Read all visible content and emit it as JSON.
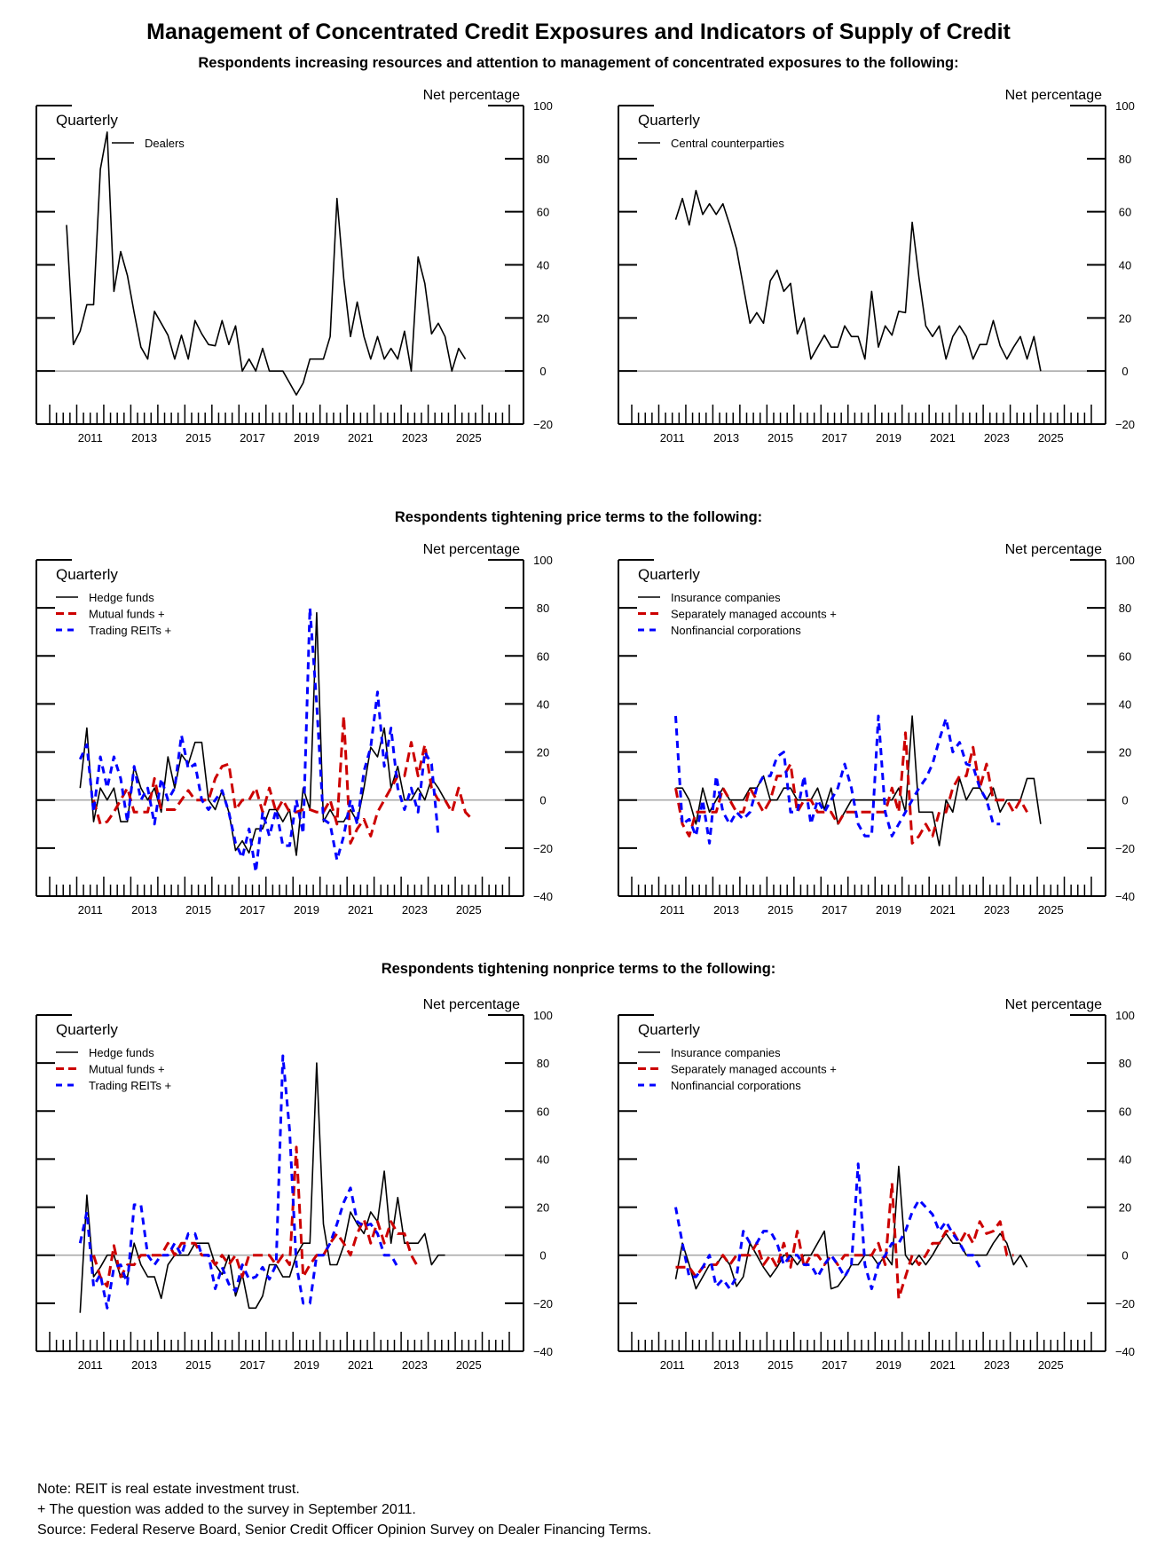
{
  "title": "Management of Concentrated Credit Exposures and Indicators of Supply of Credit",
  "sections": [
    "Respondents increasing resources and attention to management of concentrated exposures to the following:",
    "Respondents tightening price terms to the following:",
    "Respondents tightening nonprice terms to the following:"
  ],
  "notes": [
    "Note:  REIT is real estate investment trust.",
    "+ The question was added to the survey in September 2011.",
    "Source:  Federal Reserve Board, Senior Credit Officer Opinion Survey on Dealer Financing Terms."
  ],
  "chart_data": [
    {
      "id": "dealers",
      "type": "line",
      "frequency_label": "Quarterly",
      "ylabel": "Net percentage",
      "ylim": [
        -20,
        100
      ],
      "yticks": [
        -20,
        0,
        20,
        40,
        60,
        80,
        100
      ],
      "xlim": [
        2010,
        2027
      ],
      "xtick_labels": [
        "2011",
        "2013",
        "2015",
        "2017",
        "2019",
        "2021",
        "2023",
        "2025"
      ],
      "legend": "top-left",
      "zero_line": true,
      "series": [
        {
          "name": "Dealers",
          "color": "#000000",
          "style": "solid",
          "start": 2010.5,
          "values": [
            55,
            10,
            15,
            25,
            25,
            76,
            90,
            30,
            45,
            36,
            22,
            9,
            4.5,
            22.5,
            18,
            13.5,
            4.5,
            13.5,
            4.5,
            19,
            14,
            10,
            9.5,
            19,
            10,
            17,
            0,
            4.5,
            0,
            8.5,
            0,
            0,
            0,
            -4.5,
            -9,
            -4.5,
            4.5,
            4.5,
            4.5,
            13,
            65,
            35,
            13,
            26,
            13,
            4.5,
            13,
            4.5,
            8.5,
            4.5,
            15,
            0,
            43,
            33,
            14,
            18,
            13,
            0,
            8.5,
            4.5
          ]
        }
      ]
    },
    {
      "id": "ccp",
      "type": "line",
      "frequency_label": "Quarterly",
      "ylabel": "Net percentage",
      "ylim": [
        -20,
        100
      ],
      "yticks": [
        -20,
        0,
        20,
        40,
        60,
        80,
        100
      ],
      "xlim": [
        2010,
        2027
      ],
      "xtick_labels": [
        "2011",
        "2013",
        "2015",
        "2017",
        "2019",
        "2021",
        "2023",
        "2025"
      ],
      "legend": "top-left",
      "zero_line": true,
      "series": [
        {
          "name": "Central counterparties",
          "color": "#000000",
          "style": "solid",
          "start": 2011.5,
          "values": [
            57,
            65,
            55,
            68,
            59,
            63,
            59,
            63,
            55,
            46,
            32,
            18,
            22,
            18,
            34,
            38,
            30,
            33,
            14,
            20,
            4.5,
            9,
            13.5,
            9,
            9,
            17,
            13,
            13,
            4.5,
            30,
            9,
            17,
            13.5,
            22.5,
            22,
            56,
            35,
            17,
            13,
            17,
            4.5,
            13,
            17,
            13,
            4.5,
            10,
            10,
            19,
            9.5,
            4.5,
            9,
            13,
            4.5,
            13,
            0
          ]
        }
      ]
    },
    {
      "id": "price-left",
      "type": "line",
      "frequency_label": "Quarterly",
      "ylabel": "Net percentage",
      "ylim": [
        -40,
        100
      ],
      "yticks": [
        -40,
        -20,
        0,
        20,
        40,
        60,
        80,
        100
      ],
      "xlim": [
        2010.5,
        2027
      ],
      "xtick_labels": [
        "2011",
        "2013",
        "2015",
        "2017",
        "2019",
        "2021",
        "2023",
        "2025"
      ],
      "legend": "top-left",
      "zero_line": true,
      "series": [
        {
          "name": "Hedge funds",
          "color": "#000000",
          "style": "solid",
          "start": 2011,
          "values": [
            5,
            30,
            -9,
            5,
            0,
            5,
            -9,
            -9,
            14,
            5,
            0,
            5,
            -5,
            18,
            5,
            19,
            15,
            24,
            24,
            0,
            -4,
            4,
            -5,
            -21,
            -17,
            -22,
            -12,
            -12,
            -4,
            -4,
            -9,
            -4,
            -23,
            5,
            -4,
            78,
            -9,
            -4,
            -9,
            -9,
            -4,
            -9,
            5,
            22,
            18,
            30,
            5,
            14,
            0,
            0,
            5,
            0,
            9,
            5,
            0
          ]
        },
        {
          "name": "Mutual funds +",
          "color": "#cc0000",
          "style": "dash",
          "start": 2011.5,
          "values": [
            0,
            -10,
            -9,
            -5,
            0,
            5,
            -5,
            -5,
            -5,
            9,
            -4,
            -4,
            -4,
            0,
            4,
            0,
            0,
            0,
            9,
            14,
            15,
            -4,
            0,
            0,
            5,
            -5,
            5,
            -5,
            0,
            -5,
            -5,
            -4,
            -4,
            -5,
            -5,
            0,
            -10,
            35,
            -18,
            -12,
            -8,
            -15,
            -5,
            0,
            5,
            10,
            10,
            24,
            10,
            23,
            5,
            0,
            0,
            -5,
            5,
            -5,
            -8
          ]
        },
        {
          "name": "Trading REITs +",
          "color": "#0000ff",
          "style": "dash",
          "start": 2011,
          "values": [
            17,
            23,
            -5,
            18,
            5,
            18,
            9,
            -9,
            14,
            0,
            5,
            -10,
            9,
            0,
            5,
            27,
            13,
            15,
            0,
            -4,
            0,
            4,
            -5,
            -18,
            -24,
            -12,
            -30,
            -5,
            -15,
            -4,
            -19,
            -19,
            0,
            -14,
            80,
            40,
            -8,
            -10,
            -25,
            -15,
            0,
            -10,
            12,
            22,
            45,
            14,
            30,
            5,
            -4,
            5,
            -5,
            20,
            15,
            -15
          ]
        }
      ]
    },
    {
      "id": "price-right",
      "type": "line",
      "frequency_label": "Quarterly",
      "ylabel": "Net percentage",
      "ylim": [
        -40,
        100
      ],
      "yticks": [
        -40,
        -20,
        0,
        20,
        40,
        60,
        80,
        100
      ],
      "xlim": [
        2010.5,
        2027
      ],
      "xtick_labels": [
        "2011",
        "2013",
        "2015",
        "2017",
        "2019",
        "2021",
        "2023",
        "2025"
      ],
      "legend": "top-left",
      "zero_line": true,
      "series": [
        {
          "name": "Insurance companies",
          "color": "#000000",
          "style": "solid",
          "start": 2011.5,
          "values": [
            5,
            5,
            0,
            -10,
            5,
            -5,
            0,
            5,
            0,
            0,
            0,
            5,
            5,
            10,
            0,
            0,
            5,
            5,
            0,
            0,
            0,
            5,
            -4,
            5,
            -10,
            -5,
            0,
            0,
            0,
            0,
            0,
            0,
            0,
            5,
            -5,
            35,
            -5,
            -5,
            -5,
            -19,
            0,
            -5,
            9,
            0,
            5,
            5,
            0,
            5,
            -5,
            0,
            0,
            0,
            9,
            9,
            -10
          ]
        },
        {
          "name": "Separately managed accounts +",
          "color": "#cc0000",
          "style": "dash",
          "start": 2011.5,
          "values": [
            5,
            -10,
            -15,
            -5,
            -5,
            -5,
            -5,
            5,
            0,
            -5,
            -5,
            5,
            0,
            -5,
            0,
            10,
            10,
            15,
            -5,
            0,
            0,
            -5,
            -5,
            -5,
            -10,
            -5,
            -5,
            -5,
            -5,
            -5,
            -5,
            -5,
            5,
            -5,
            28,
            -18,
            -15,
            -10,
            -15,
            -5,
            -5,
            5,
            10,
            10,
            22,
            5,
            15,
            0,
            0,
            0,
            -5,
            0,
            -5
          ]
        },
        {
          "name": "Nonfinancial corporations",
          "color": "#0000ff",
          "style": "dash",
          "start": 2011.5,
          "values": [
            35,
            -10,
            -8,
            -15,
            0,
            -18,
            10,
            -5,
            -10,
            -5,
            -8,
            -5,
            5,
            10,
            10,
            18,
            20,
            -5,
            -5,
            10,
            -10,
            0,
            -5,
            0,
            5,
            15,
            5,
            -10,
            -15,
            -15,
            35,
            -5,
            -15,
            -10,
            -5,
            0,
            5,
            9,
            15,
            25,
            34,
            20,
            24,
            15,
            14,
            5,
            0,
            -10,
            -10
          ]
        }
      ]
    },
    {
      "id": "nonprice-left",
      "type": "line",
      "frequency_label": "Quarterly",
      "ylabel": "Net percentage",
      "ylim": [
        -40,
        100
      ],
      "yticks": [
        -40,
        -20,
        0,
        20,
        40,
        60,
        80,
        100
      ],
      "xlim": [
        2010.5,
        2027
      ],
      "xtick_labels": [
        "2011",
        "2013",
        "2015",
        "2017",
        "2019",
        "2021",
        "2023",
        "2025"
      ],
      "legend": "top-left",
      "zero_line": true,
      "series": [
        {
          "name": "Hedge funds",
          "color": "#000000",
          "style": "solid",
          "start": 2011,
          "values": [
            -24,
            25,
            -9,
            -5,
            0,
            0,
            -9,
            -9,
            5,
            -4,
            -9,
            -9,
            -18,
            -4,
            0,
            0,
            0,
            5,
            5,
            5,
            -4,
            -8,
            0,
            -17,
            -8,
            -22,
            -22,
            -17,
            -4,
            -4,
            -9,
            -9,
            0,
            5,
            5,
            80,
            13,
            -4,
            -4,
            4,
            18,
            13,
            9,
            18,
            14,
            35,
            5,
            24,
            5,
            5,
            5,
            9,
            -4,
            0,
            0
          ]
        },
        {
          "name": "Mutual funds +",
          "color": "#cc0000",
          "style": "dash",
          "start": 2011.5,
          "values": [
            0,
            -9,
            -13,
            4,
            -9,
            -4,
            -4,
            0,
            0,
            0,
            0,
            5,
            0,
            5,
            5,
            5,
            0,
            0,
            -4,
            0,
            -4,
            0,
            -9,
            0,
            0,
            0,
            0,
            -4,
            0,
            -4,
            45,
            -9,
            -4,
            0,
            0,
            5,
            9,
            5,
            0,
            9,
            15,
            5,
            14,
            5,
            14,
            9,
            9,
            0,
            -5
          ]
        },
        {
          "name": "Trading REITs +",
          "color": "#0000ff",
          "style": "dash",
          "start": 2011,
          "values": [
            5,
            18,
            -13,
            -8,
            -22,
            -5,
            -4,
            -12,
            21,
            21,
            0,
            -4,
            0,
            0,
            5,
            0,
            9,
            9,
            0,
            0,
            -14,
            -5,
            -12,
            -15,
            -4,
            -10,
            -9,
            -5,
            -10,
            -4,
            83,
            52,
            -4,
            -20,
            -20,
            0,
            0,
            5,
            13,
            22,
            28,
            14,
            12,
            13,
            9,
            0,
            0,
            -5
          ]
        }
      ]
    },
    {
      "id": "nonprice-right",
      "type": "line",
      "frequency_label": "Quarterly",
      "ylabel": "Net percentage",
      "ylim": [
        -40,
        100
      ],
      "yticks": [
        -40,
        -20,
        0,
        20,
        40,
        60,
        80,
        100
      ],
      "xlim": [
        2010.5,
        2027
      ],
      "xtick_labels": [
        "2011",
        "2013",
        "2015",
        "2017",
        "2019",
        "2021",
        "2023",
        "2025"
      ],
      "legend": "top-left",
      "zero_line": true,
      "series": [
        {
          "name": "Insurance companies",
          "color": "#000000",
          "style": "solid",
          "start": 2011.5,
          "values": [
            -10,
            5,
            -4,
            -14,
            -9,
            -4,
            -4,
            0,
            -4,
            -13,
            -9,
            5,
            0,
            -5,
            -9,
            -5,
            0,
            0,
            -4,
            0,
            0,
            5,
            10,
            -14,
            -13,
            -9,
            -4,
            -4,
            0,
            0,
            -4,
            0,
            -4,
            37,
            0,
            -4,
            0,
            -4,
            0,
            5,
            9,
            5,
            5,
            0,
            0,
            0,
            0,
            5,
            9,
            5,
            -4,
            0,
            -5
          ]
        },
        {
          "name": "Separately managed accounts +",
          "color": "#cc0000",
          "style": "dash",
          "start": 2011.5,
          "values": [
            -5,
            -5,
            -5,
            -9,
            -5,
            -4,
            -4,
            0,
            -4,
            0,
            0,
            0,
            5,
            -4,
            0,
            -5,
            5,
            -5,
            10,
            -5,
            0,
            0,
            -4,
            0,
            -4,
            0,
            0,
            0,
            0,
            0,
            5,
            -4,
            30,
            -18,
            -9,
            0,
            -4,
            0,
            5,
            5,
            10,
            10,
            5,
            10,
            5,
            14,
            9,
            10,
            14,
            0,
            0
          ]
        },
        {
          "name": "Nonfinancial corporations",
          "color": "#0000ff",
          "style": "dash",
          "start": 2011.5,
          "values": [
            20,
            5,
            -9,
            -9,
            -5,
            0,
            -13,
            -10,
            -14,
            -9,
            10,
            5,
            5,
            10,
            10,
            5,
            -4,
            0,
            0,
            -4,
            -4,
            -9,
            -4,
            0,
            -4,
            -9,
            -4,
            38,
            -4,
            -14,
            -4,
            0,
            5,
            5,
            10,
            18,
            23,
            20,
            17,
            10,
            14,
            9,
            5,
            0,
            0,
            -5
          ]
        }
      ]
    }
  ]
}
